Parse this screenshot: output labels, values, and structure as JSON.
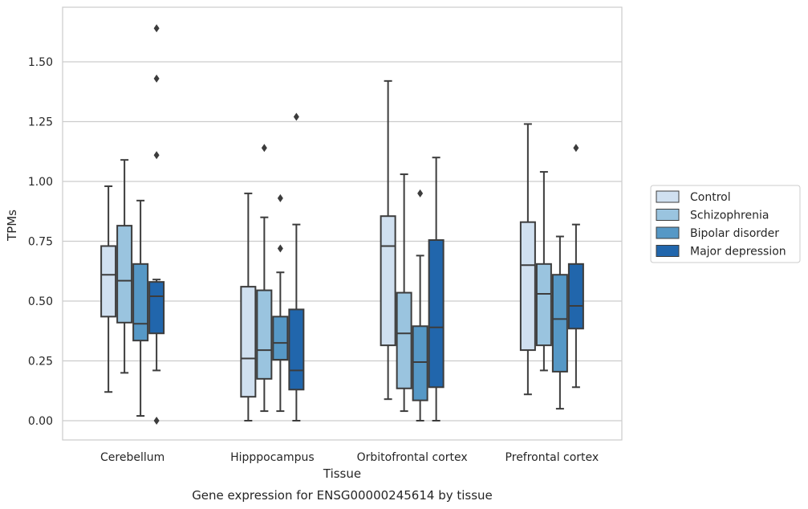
{
  "chart_data": {
    "type": "boxplot",
    "title": "Gene expression for ENSG00000245614 by tissue",
    "xlabel": "Tissue",
    "ylabel": "TPMs",
    "ylim": [
      -0.08,
      1.72
    ],
    "yticks": [
      "0.00",
      "0.25",
      "0.50",
      "0.75",
      "1.00",
      "1.25",
      "1.50"
    ],
    "ytick_values": [
      0,
      0.25,
      0.5,
      0.75,
      1.0,
      1.25,
      1.5
    ],
    "grid": "horizontal",
    "legend_position": "right",
    "categories": [
      "Cerebellum",
      "Hipppocampus",
      "Orbitofrontal cortex",
      "Prefrontal cortex"
    ],
    "series": [
      {
        "name": "Control",
        "color": "#d0e0f0",
        "boxes": [
          {
            "whislo": 0.12,
            "q1": 0.435,
            "med": 0.61,
            "q3": 0.73,
            "whishi": 0.98,
            "fliers": []
          },
          {
            "whislo": 0.0,
            "q1": 0.1,
            "med": 0.26,
            "q3": 0.56,
            "whishi": 0.95,
            "fliers": []
          },
          {
            "whislo": 0.09,
            "q1": 0.315,
            "med": 0.73,
            "q3": 0.855,
            "whishi": 1.42,
            "fliers": []
          },
          {
            "whislo": 0.11,
            "q1": 0.295,
            "med": 0.65,
            "q3": 0.83,
            "whishi": 1.24,
            "fliers": []
          }
        ]
      },
      {
        "name": "Schizophrenia",
        "color": "#9ac4df",
        "boxes": [
          {
            "whislo": 0.2,
            "q1": 0.41,
            "med": 0.585,
            "q3": 0.815,
            "whishi": 1.09,
            "fliers": []
          },
          {
            "whislo": 0.04,
            "q1": 0.175,
            "med": 0.295,
            "q3": 0.545,
            "whishi": 0.85,
            "fliers": [
              1.14
            ]
          },
          {
            "whislo": 0.04,
            "q1": 0.135,
            "med": 0.365,
            "q3": 0.535,
            "whishi": 1.03,
            "fliers": []
          },
          {
            "whislo": 0.21,
            "q1": 0.315,
            "med": 0.53,
            "q3": 0.655,
            "whishi": 1.04,
            "fliers": []
          }
        ]
      },
      {
        "name": "Bipolar disorder",
        "color": "#5698c6",
        "boxes": [
          {
            "whislo": 0.02,
            "q1": 0.335,
            "med": 0.405,
            "q3": 0.655,
            "whishi": 0.92,
            "fliers": []
          },
          {
            "whislo": 0.04,
            "q1": 0.255,
            "med": 0.325,
            "q3": 0.435,
            "whishi": 0.62,
            "fliers": [
              0.72,
              0.93
            ]
          },
          {
            "whislo": 0.0,
            "q1": 0.085,
            "med": 0.245,
            "q3": 0.395,
            "whishi": 0.69,
            "fliers": [
              0.95
            ]
          },
          {
            "whislo": 0.05,
            "q1": 0.205,
            "med": 0.425,
            "q3": 0.61,
            "whishi": 0.77,
            "fliers": []
          }
        ]
      },
      {
        "name": "Major depression",
        "color": "#2166ac",
        "boxes": [
          {
            "whislo": 0.21,
            "q1": 0.365,
            "med": 0.52,
            "q3": 0.58,
            "whishi": 0.59,
            "fliers": [
              0.0,
              1.11,
              1.43,
              1.64
            ]
          },
          {
            "whislo": 0.0,
            "q1": 0.13,
            "med": 0.21,
            "q3": 0.465,
            "whishi": 0.82,
            "fliers": [
              1.27
            ]
          },
          {
            "whislo": 0.0,
            "q1": 0.14,
            "med": 0.39,
            "q3": 0.755,
            "whishi": 1.1,
            "fliers": []
          },
          {
            "whislo": 0.14,
            "q1": 0.385,
            "med": 0.48,
            "q3": 0.655,
            "whishi": 0.82,
            "fliers": [
              1.14
            ]
          }
        ]
      }
    ]
  }
}
